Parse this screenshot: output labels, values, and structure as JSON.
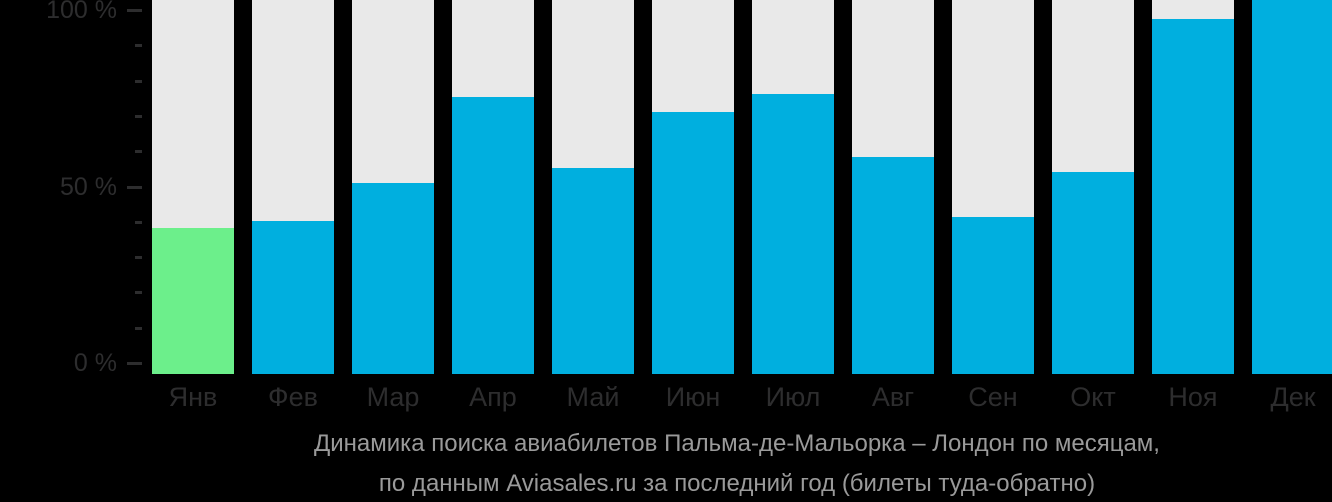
{
  "background_color": "#000000",
  "chart_data": {
    "type": "bar",
    "title": "Динамика поиска авиабилетов Пальма-де-Мальорка – Лондон по месяцам,",
    "subtitle": "по данным Aviasales.ru за последний год (билеты туда-обратно)",
    "categories": [
      "Янв",
      "Фев",
      "Мар",
      "Апр",
      "Май",
      "Июн",
      "Июл",
      "Авг",
      "Сен",
      "Окт",
      "Ноя",
      "Дек"
    ],
    "values": [
      39,
      41,
      51,
      74,
      55,
      70,
      75,
      58,
      42,
      54,
      95,
      100
    ],
    "xlabel": "",
    "ylabel": "",
    "ylim": [
      0,
      100
    ],
    "grid": false,
    "legend_position": "none",
    "y_axis": {
      "major_ticks": [
        {
          "value": 100,
          "label": "100 %"
        },
        {
          "value": 50,
          "label": "50 %"
        },
        {
          "value": 0,
          "label": "0 %"
        }
      ],
      "minor_tick_step": 10
    },
    "highlight_index": 0,
    "colors": {
      "bar_fill": "#00afdf",
      "highlight_fill": "#6cef8b",
      "bar_track": "#e9e9e9",
      "axis_label": "#2d2d2e",
      "caption_text": "#9a9a9a"
    }
  }
}
